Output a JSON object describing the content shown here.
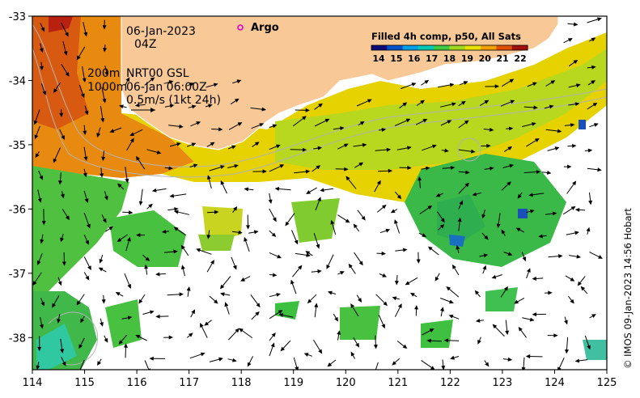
{
  "map": {
    "x_ticks": [
      "114",
      "115",
      "116",
      "117",
      "118",
      "119",
      "120",
      "121",
      "122",
      "123",
      "124",
      "125"
    ],
    "y_ticks": [
      "-33",
      "-34",
      "-35",
      "-36",
      "-37",
      "-38"
    ],
    "lon_range": [
      114,
      125
    ],
    "lat_range": [
      -38.5,
      -33
    ]
  },
  "annotations": {
    "date": "06-Jan-2023",
    "time": "04Z",
    "depth_200": "200m",
    "depth_1000": "1000m",
    "nrt": "NRT00 GSL",
    "nrt_time": "06-Jan 06:00Z",
    "scale": "0.5m/s (1kt 24h)"
  },
  "legend": {
    "argo_label": "Argo",
    "argo_color": "#e000c8"
  },
  "colorbar": {
    "title": "Filled 4h comp, p50, All Sats",
    "ticks": [
      "14",
      "15",
      "16",
      "17",
      "18",
      "19",
      "20",
      "21",
      "22"
    ],
    "colors": [
      "#0a0a78",
      "#0050c8",
      "#00a0e6",
      "#00c8b4",
      "#40c840",
      "#a0d820",
      "#e8e000",
      "#f0a000",
      "#e05000",
      "#a01010"
    ]
  },
  "credit": "© IMOS 09-Jan-2023 14:56 Hobart",
  "colors": {
    "land": "#f8c896",
    "contour": "#b4b4b4",
    "coast": "#ffffff"
  }
}
